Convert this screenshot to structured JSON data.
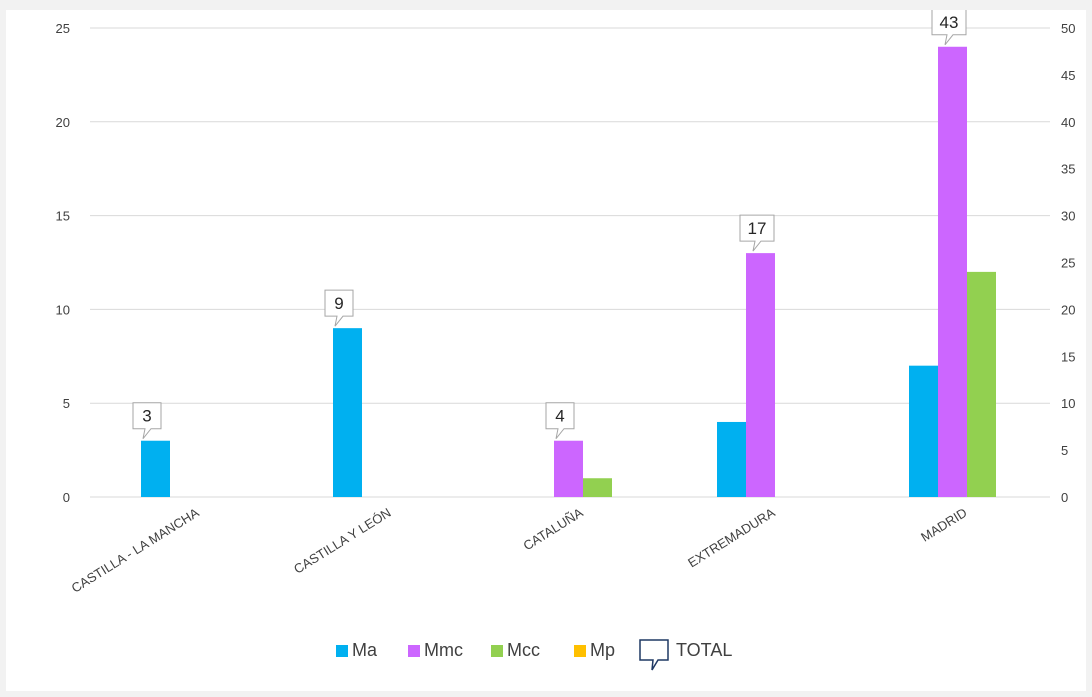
{
  "chart_data": {
    "type": "bar",
    "title": "",
    "xlabel": "",
    "ylabel": "",
    "categories": [
      "CASTILLA - LA MANCHA",
      "CASTILLA Y LEÓN",
      "CATALUÑA",
      "EXTREMADURA",
      "MADRID"
    ],
    "series": [
      {
        "name": "Ma",
        "color": "#00b0f0",
        "values": [
          3,
          9,
          0,
          4,
          7
        ]
      },
      {
        "name": "Mmc",
        "color": "#cc66ff",
        "values": [
          0,
          0,
          3,
          13,
          24
        ]
      },
      {
        "name": "Mcc",
        "color": "#92d050",
        "values": [
          0,
          0,
          1,
          0,
          12
        ]
      },
      {
        "name": "Mp",
        "color": "#ffc000",
        "values": [
          0,
          0,
          0,
          0,
          0
        ]
      }
    ],
    "total": {
      "name": "TOTAL",
      "axis": "secondary",
      "values": [
        3,
        9,
        4,
        17,
        43
      ]
    },
    "y_left": {
      "min": 0,
      "max": 25,
      "ticks": [
        "0",
        "5",
        "10",
        "15",
        "20",
        "25"
      ]
    },
    "y_right": {
      "min": 0,
      "max": 50,
      "ticks": [
        "0",
        "5",
        "10",
        "15",
        "20",
        "25",
        "30",
        "35",
        "40",
        "45",
        "50"
      ]
    },
    "grid": true,
    "legend_position": "bottom"
  }
}
